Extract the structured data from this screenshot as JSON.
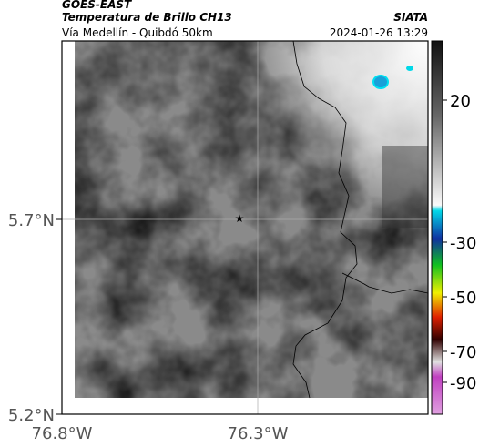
{
  "header": {
    "source": "GOES-EAST",
    "title": "Temperatura de Brillo CH13",
    "subtitle": "Vía Medellín - Quibdó 50km",
    "credit": "SIATA",
    "timestamp": "2024-01-26 13:29"
  },
  "map": {
    "lat_ticks": [
      "5.7°N",
      "5.2°N"
    ],
    "lon_ticks": [
      "76.8°W",
      "76.3°W"
    ]
  },
  "colorbar": {
    "ticks": [
      20,
      -30,
      -50,
      -70,
      -90
    ]
  }
}
